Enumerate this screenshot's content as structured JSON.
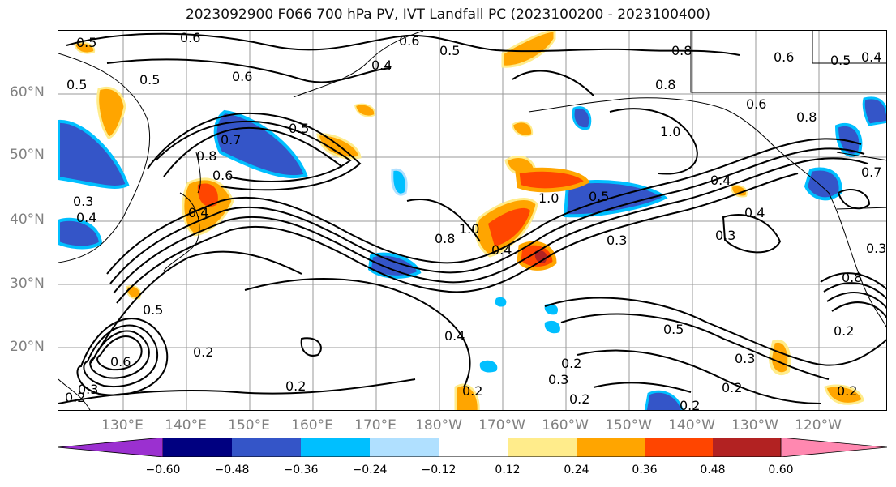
{
  "title": "2023092900 F066 700 hPa PV, IVT Landfall PC (2023100200 - 2023100400)",
  "axes": {
    "lat_labels": [
      "60°N",
      "50°N",
      "40°N",
      "30°N",
      "20°N"
    ],
    "lon_labels": [
      "130°E",
      "140°E",
      "150°E",
      "160°E",
      "170°E",
      "180°W",
      "170°W",
      "160°W",
      "150°W",
      "140°W",
      "130°W",
      "120°W"
    ]
  },
  "colorbar": {
    "tick_labels": [
      "−0.60",
      "−0.48",
      "−0.36",
      "−0.24",
      "−0.12",
      "0.12",
      "0.24",
      "0.36",
      "0.48",
      "0.60"
    ],
    "colors": [
      "#9b30d0",
      "#000080",
      "#3455c8",
      "#00bfff",
      "#b0e0ff",
      "#ffffff",
      "#ffec8b",
      "#ffa500",
      "#ff4500",
      "#b22222",
      "#ff88b0"
    ]
  },
  "contour_labels": [
    "0.5",
    "0.6",
    "0.6",
    "0.5",
    "0.8",
    "0.6",
    "0.5",
    "0.4",
    "0.5",
    "0.6",
    "0.4",
    "0.5",
    "0.8",
    "0.7",
    "0.5",
    "0.6",
    "0.8",
    "1.0",
    "0.6",
    "0.8",
    "0.3",
    "0.4",
    "0.4",
    "0.4",
    "1.0",
    "0.8",
    "0.4",
    "0.5",
    "1.0",
    "0.3",
    "0.4",
    "0.3",
    "0.8",
    "0.3",
    "0.5",
    "0.5",
    "0.2",
    "0.6",
    "0.4",
    "0.2",
    "0.3",
    "0.2",
    "0.2",
    "0.3",
    "0.2",
    "0.2",
    "0.2",
    "0.2",
    "0.2",
    "0.7",
    "0.3",
    "0.2"
  ]
}
